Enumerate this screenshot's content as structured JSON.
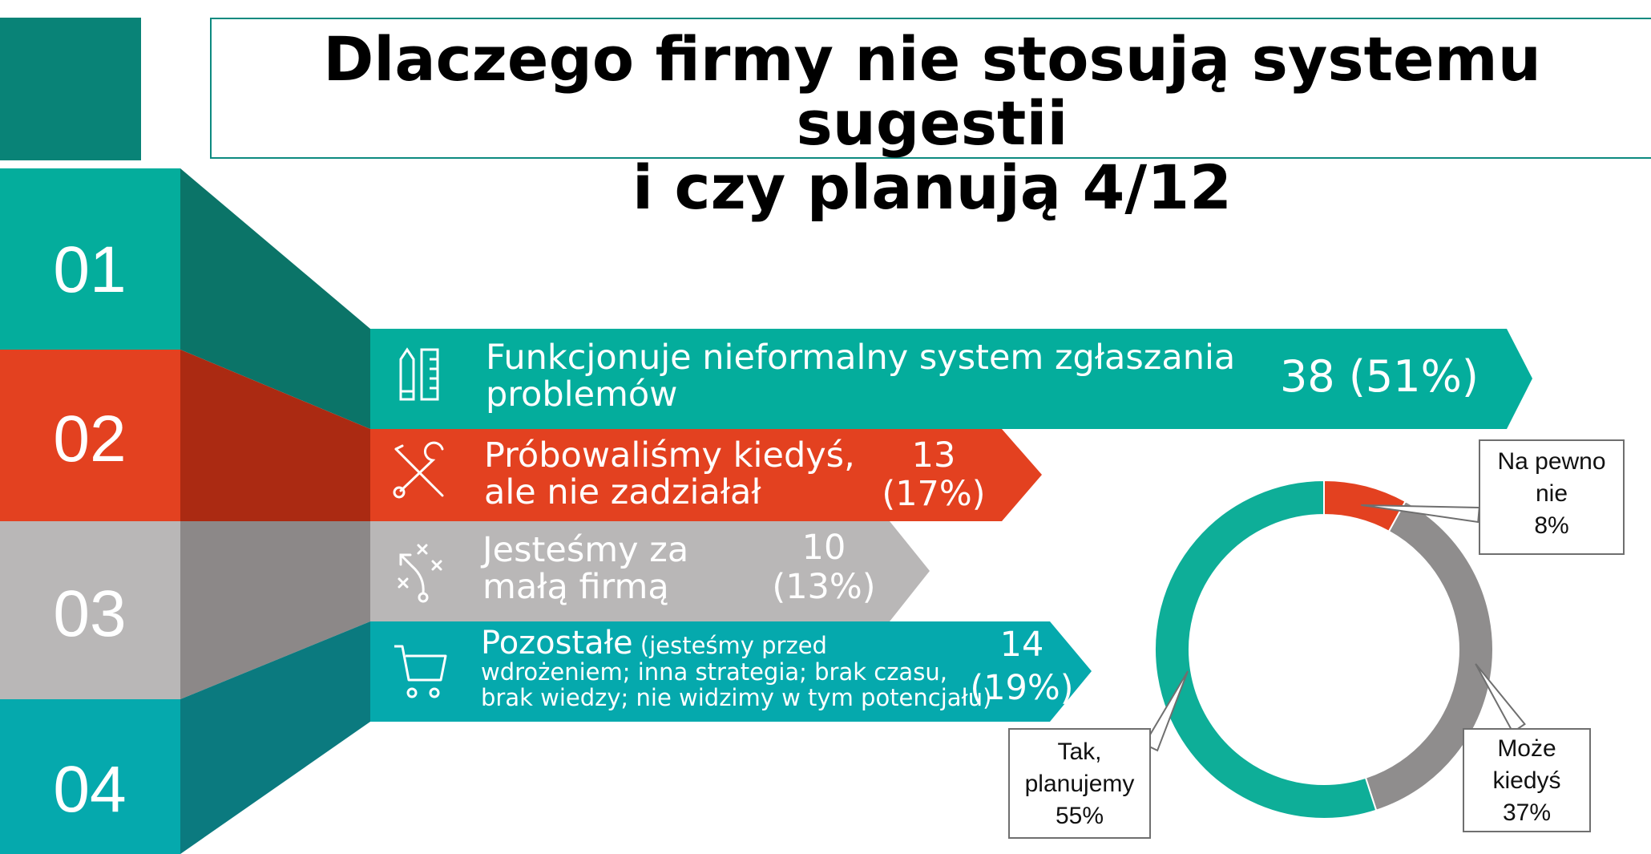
{
  "title": {
    "line1": "Dlaczego firmy nie stosują systemu sugestii",
    "line2": "i czy planują 4/12"
  },
  "colors": {
    "teal": "#04ad9c",
    "dark_teal": "#0b7468",
    "orange": "#e34120",
    "dark_orange": "#ab2a12",
    "gray": "#b9b7b7",
    "dark_gray": "#8c8888",
    "cyan": "#05a9ad",
    "dark_cyan": "#0b7a7f"
  },
  "steps": [
    {
      "number": "01",
      "icon": "pencil-ruler-icon",
      "text_lines": [
        "Funkcjonuje nieformalny system zgłaszania",
        "problemów"
      ],
      "value_lines": [
        "38 (51%)"
      ],
      "count": 38,
      "percent": 51
    },
    {
      "number": "02",
      "icon": "wrench-screwdriver-icon",
      "text_lines": [
        "Próbowaliśmy kiedyś,",
        "ale nie zadziałał"
      ],
      "value_lines": [
        "13",
        "(17%)"
      ],
      "count": 13,
      "percent": 17
    },
    {
      "number": "03",
      "icon": "strategy-play-icon",
      "text_lines": [
        "Jesteśmy za",
        "małą firmą"
      ],
      "value_lines": [
        "10",
        "(13%)"
      ],
      "count": 10,
      "percent": 13
    },
    {
      "number": "04",
      "icon": "shopping-cart-icon",
      "text_main": "Pozostałe",
      "text_note": " (jesteśmy przed",
      "text_lines_small": [
        "wdrożeniem; inna strategia; brak czasu,",
        "brak wiedzy; nie widzimy w tym potencjału)"
      ],
      "value_lines": [
        "14",
        "(19%)"
      ],
      "count": 14,
      "percent": 19
    }
  ],
  "chart_data": {
    "type": "pie",
    "variant": "donut",
    "slices": [
      {
        "label": "Na pewno nie",
        "value": 8,
        "color": "#e34120",
        "label_lines": [
          "Na pewno",
          "nie",
          "8%"
        ]
      },
      {
        "label": "Może kiedyś",
        "value": 37,
        "color": "#8f8d8d",
        "label_lines": [
          "Może",
          "kiedyś",
          "37%"
        ]
      },
      {
        "label": "Tak, planujemy",
        "value": 55,
        "color": "#0eae98",
        "label_lines": [
          "Tak,",
          "planujemy",
          "55%"
        ]
      }
    ]
  }
}
